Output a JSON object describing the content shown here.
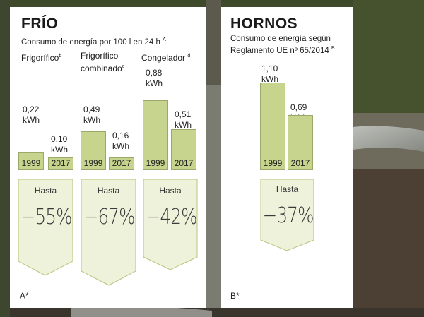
{
  "colors": {
    "bar": "#c6d48d",
    "reduction_box": "#eef2da",
    "reduction_stroke": "#b7c47c",
    "panel": "#ffffff",
    "text": "#1a1a1a"
  },
  "frio": {
    "title": "FRÍO",
    "subtitle": "Consumo de energía por 100 l en 24 h",
    "subtitle_note": "A",
    "groups": [
      {
        "label_line1": "Frigorífico",
        "label_line2": "",
        "note": "b",
        "v1999": "0,22 kWh",
        "v2017": "0,10 kWh",
        "hasta": "Hasta",
        "reduction": "−55%"
      },
      {
        "label_line1": "Frigorífico",
        "label_line2": "combinado",
        "note": "c",
        "v1999": "0,49 kWh",
        "v2017": "0,16 kWh",
        "hasta": "Hasta",
        "reduction": "−67%"
      },
      {
        "label_line1": "Congelador",
        "label_line2": "",
        "note": "d",
        "v1999": "0,88 kWh",
        "v2017": "0,51 kWh",
        "hasta": "Hasta",
        "reduction": "−42%"
      }
    ],
    "footnote": "A*"
  },
  "hornos": {
    "title": "HORNOS",
    "subtitle_line1": "Consumo de energía según",
    "subtitle_line2": "Reglamento UE nº 65/2014",
    "subtitle_note": "B",
    "group": {
      "v1999": "1,10 kWh",
      "v2017": "0,69 kWh",
      "hasta": "Hasta",
      "reduction": "−37%"
    },
    "footnote": "B*"
  },
  "chart_data": [
    {
      "type": "bar",
      "title": "FRÍO",
      "subtitle": "Consumo de energía por 100 l en 24 h",
      "categories": [
        "Frigorífico",
        "Frigorífico combinado",
        "Congelador"
      ],
      "series": [
        {
          "name": "1999",
          "values": [
            0.22,
            0.49,
            0.88
          ]
        },
        {
          "name": "2017",
          "values": [
            0.1,
            0.16,
            0.51
          ]
        }
      ],
      "unit": "kWh",
      "reductions": [
        "−55%",
        "−67%",
        "−42%"
      ]
    },
    {
      "type": "bar",
      "title": "HORNOS",
      "subtitle": "Consumo de energía según Reglamento UE nº 65/2014",
      "categories": [
        "Hornos"
      ],
      "series": [
        {
          "name": "1999",
          "values": [
            1.1
          ]
        },
        {
          "name": "2017",
          "values": [
            0.69
          ]
        }
      ],
      "unit": "kWh",
      "reductions": [
        "−37%"
      ]
    }
  ]
}
